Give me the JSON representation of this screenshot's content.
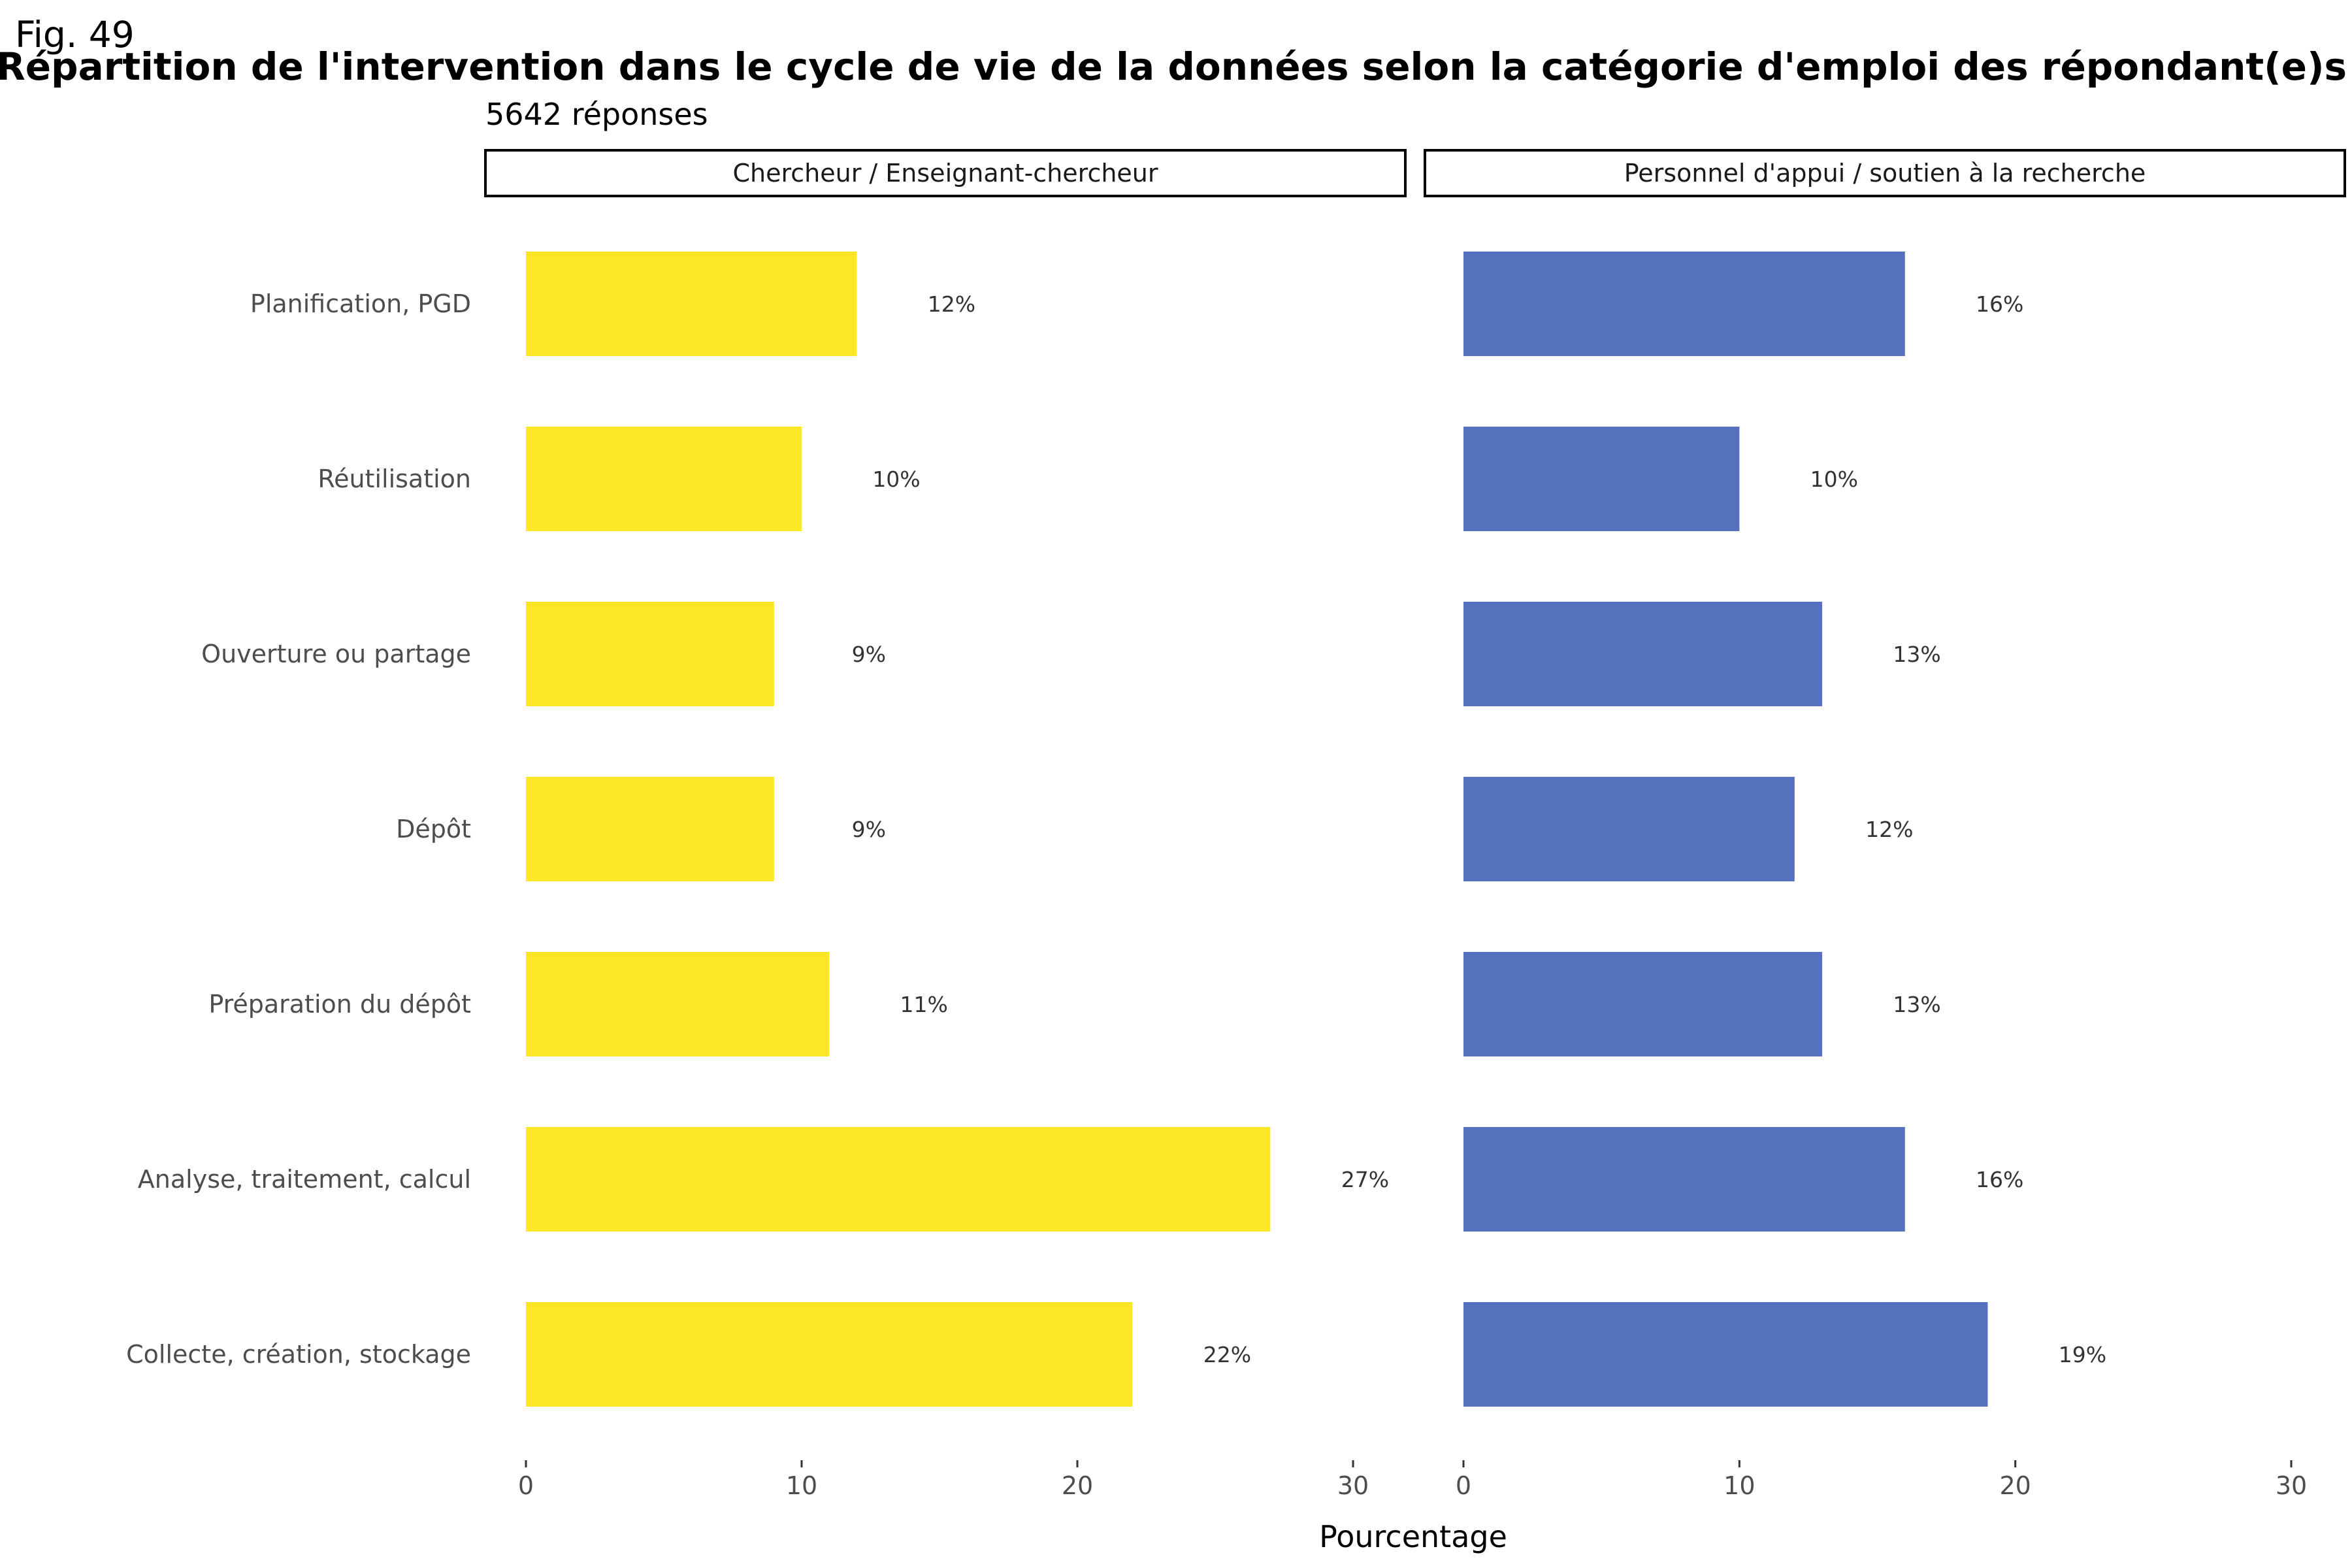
{
  "fig_label": "Fig. 49",
  "chart_data": {
    "type": "bar",
    "orientation": "horizontal",
    "title": "Répartition de l'intervention dans le cycle de vie de la données selon la catégorie d'emploi des répondant(e)s",
    "subtitle": "5642 réponses",
    "xlabel": "Pourcentage",
    "ylabel": "",
    "xlim": [
      0,
      30
    ],
    "x_ticks": [
      "0",
      "10",
      "20",
      "30"
    ],
    "grid": false,
    "categories": [
      "Planification, PGD",
      "Réutilisation",
      "Ouverture ou partage",
      "Dépôt",
      "Préparation du dépôt",
      "Analyse, traitement, calcul",
      "Collecte, création, stockage"
    ],
    "panels": [
      {
        "name": "Chercheur / Enseignant-chercheur",
        "color": "#FDE725",
        "values": [
          12,
          10,
          9,
          9,
          11,
          27,
          22
        ],
        "labels": [
          "12%",
          "10%",
          "9%",
          "9%",
          "11%",
          "27%",
          "22%"
        ]
      },
      {
        "name": "Personnel d'appui / soutien à la recherche",
        "color": "#5571BE",
        "values": [
          16,
          10,
          13,
          12,
          13,
          16,
          19
        ],
        "labels": [
          "16%",
          "10%",
          "13%",
          "12%",
          "13%",
          "16%",
          "19%"
        ]
      }
    ]
  }
}
